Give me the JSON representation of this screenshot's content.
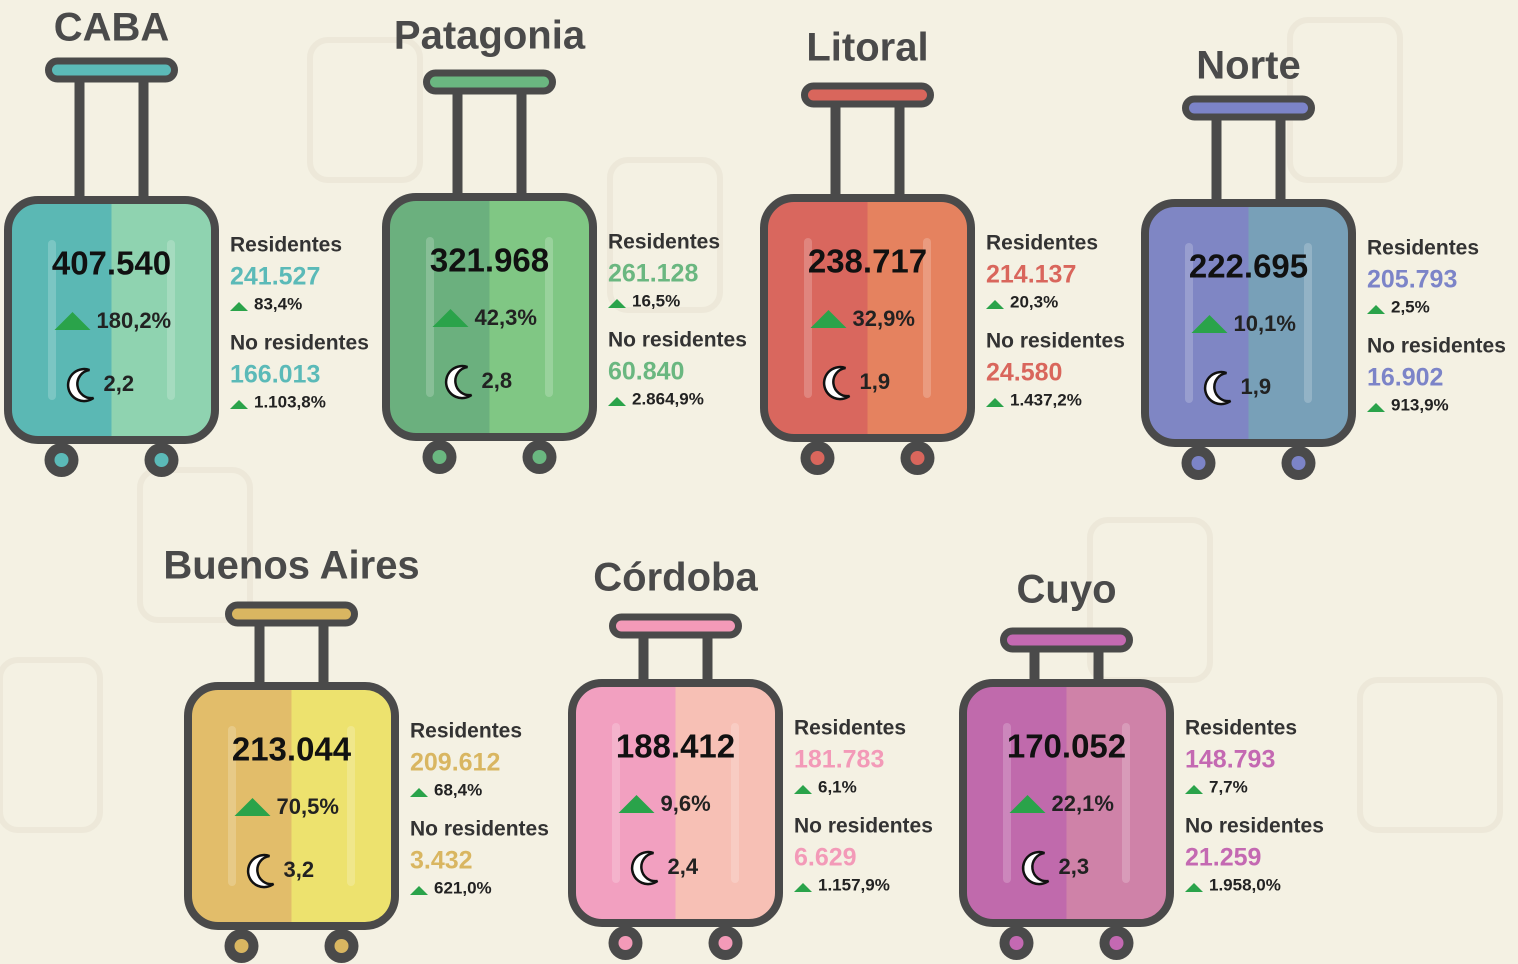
{
  "regions": [
    {
      "name": "CABA",
      "total": "407.540",
      "change": "180,2%",
      "nights": "2,2",
      "colors": [
        "#5bb8b4",
        "#8fd3b0",
        "#5bbab8"
      ],
      "residents": {
        "label": "Residentes",
        "value": "241.527",
        "change": "83,4%"
      },
      "non_residents": {
        "label": "No residentes",
        "value": "166.013",
        "change": "1.103,8%"
      }
    },
    {
      "name": "Patagonia",
      "total": "321.968",
      "change": "42,3%",
      "nights": "2,8",
      "colors": [
        "#6bb07e",
        "#80c784",
        "#6ab780"
      ],
      "residents": {
        "label": "Residentes",
        "value": "261.128",
        "change": "16,5%"
      },
      "non_residents": {
        "label": "No residentes",
        "value": "60.840",
        "change": "2.864,9%"
      }
    },
    {
      "name": "Litoral",
      "total": "238.717",
      "change": "32,9%",
      "nights": "1,9",
      "colors": [
        "#d9675e",
        "#e5825f",
        "#d9665c"
      ],
      "residents": {
        "label": "Residentes",
        "value": "214.137",
        "change": "20,3%"
      },
      "non_residents": {
        "label": "No residentes",
        "value": "24.580",
        "change": "1.437,2%"
      }
    },
    {
      "name": "Norte",
      "total": "222.695",
      "change": "10,1%",
      "nights": "1,9",
      "colors": [
        "#7f86c4",
        "#78a0b8",
        "#7c84c8"
      ],
      "residents": {
        "label": "Residentes",
        "value": "205.793",
        "change": "2,5%"
      },
      "non_residents": {
        "label": "No residentes",
        "value": "16.902",
        "change": "913,9%"
      }
    },
    {
      "name": "Buenos Aires",
      "total": "213.044",
      "change": "70,5%",
      "nights": "3,2",
      "colors": [
        "#e2bd6a",
        "#ede26e",
        "#d9b661"
      ],
      "residents": {
        "label": "Residentes",
        "value": "209.612",
        "change": "68,4%"
      },
      "non_residents": {
        "label": "No residentes",
        "value": "3.432",
        "change": "621,0%"
      }
    },
    {
      "name": "Córdoba",
      "total": "188.412",
      "change": "9,6%",
      "nights": "2,4",
      "colors": [
        "#f2a0c0",
        "#f7c0b5",
        "#f39ab8"
      ],
      "residents": {
        "label": "Residentes",
        "value": "181.783",
        "change": "6,1%"
      },
      "non_residents": {
        "label": "No residentes",
        "value": "6.629",
        "change": "1.157,9%"
      }
    },
    {
      "name": "Cuyo",
      "total": "170.052",
      "change": "22,1%",
      "nights": "2,3",
      "colors": [
        "#c06aac",
        "#cf82a8",
        "#c469b2"
      ],
      "residents": {
        "label": "Residentes",
        "value": "148.793",
        "change": "7,7%"
      },
      "non_residents": {
        "label": "No residentes",
        "value": "21.259",
        "change": "1.958,0%"
      }
    }
  ]
}
